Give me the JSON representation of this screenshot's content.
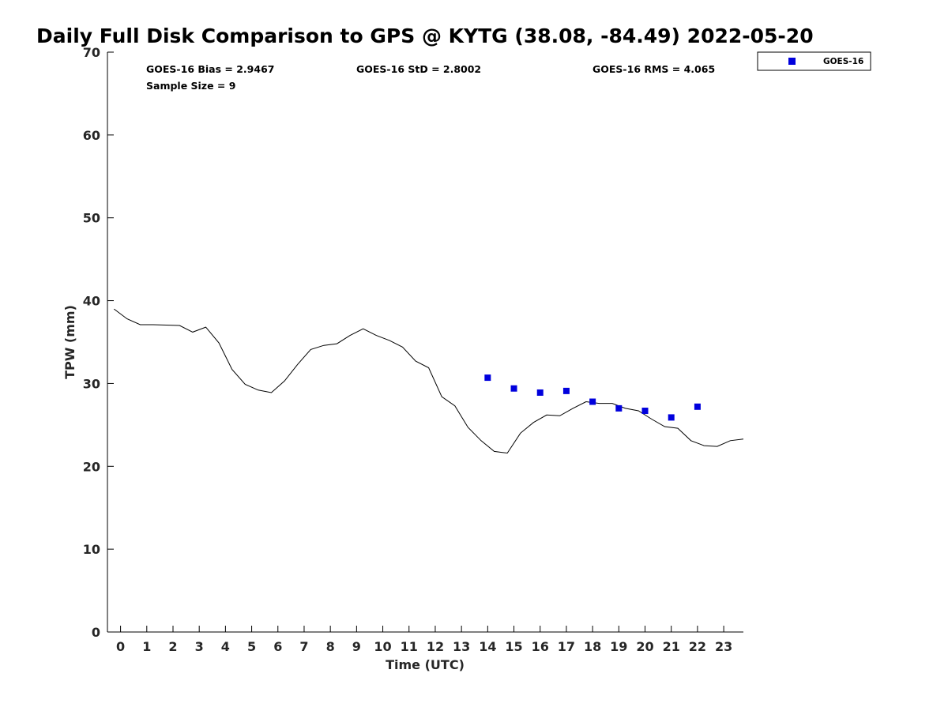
{
  "chart_data": {
    "type": "scatter",
    "title": "Daily Full Disk Comparison to GPS @ KYTG (38.08, -84.49) 2022-05-20",
    "xlabel": "Time (UTC)",
    "ylabel": "TPW (mm)",
    "xlim": [
      -0.5,
      23.75
    ],
    "ylim": [
      0,
      70
    ],
    "xticks": [
      "0",
      "1",
      "2",
      "3",
      "4",
      "5",
      "6",
      "7",
      "8",
      "9",
      "10",
      "11",
      "12",
      "13",
      "14",
      "15",
      "16",
      "17",
      "18",
      "19",
      "20",
      "21",
      "22",
      "23"
    ],
    "yticks": [
      "0",
      "10",
      "20",
      "30",
      "40",
      "50",
      "60",
      "70"
    ],
    "grid": false,
    "legend_position": "top-right, outside plot",
    "stats": {
      "bias": "GOES-16 Bias = 2.9467",
      "std": "GOES-16 StD = 2.8002",
      "rms": "GOES-16 RMS = 4.065",
      "sample": "Sample Size = 9"
    },
    "series": [
      {
        "kind": "line",
        "color": "#000000",
        "x": [
          -0.25,
          0.25,
          0.75,
          1.25,
          1.75,
          2.25,
          2.75,
          3.25,
          3.75,
          4.25,
          4.75,
          5.25,
          5.75,
          6.25,
          6.75,
          7.25,
          7.75,
          8.25,
          8.75,
          9.25,
          9.75,
          10.25,
          10.75,
          11.25,
          11.75,
          12.25,
          12.75,
          13.25,
          13.75,
          14.25,
          14.75,
          15.25,
          15.75,
          16.25,
          16.75,
          17.25,
          17.75,
          18.25,
          18.75,
          19.25,
          19.75,
          20.25,
          20.75,
          21.25,
          21.75,
          22.25,
          22.75,
          23.25,
          23.75
        ],
        "y": [
          39.0,
          37.8,
          37.1,
          37.1,
          37.05,
          37.0,
          36.2,
          36.8,
          34.9,
          31.7,
          29.9,
          29.2,
          28.9,
          30.3,
          32.3,
          34.1,
          34.6,
          34.8,
          35.8,
          36.6,
          35.8,
          35.2,
          34.4,
          32.7,
          31.9,
          28.4,
          27.3,
          24.7,
          23.1,
          21.8,
          21.6,
          24.0,
          25.3,
          26.2,
          26.1,
          27.0,
          27.8,
          27.6,
          27.6,
          27.0,
          26.7,
          25.7,
          24.8,
          24.6,
          23.1,
          22.5,
          22.4,
          23.1,
          23.3
        ]
      },
      {
        "kind": "scatter",
        "name": "GOES-16",
        "color": "#0000dd",
        "x": [
          14,
          15,
          16,
          17,
          18,
          19,
          20,
          21,
          22
        ],
        "y": [
          30.7,
          29.4,
          28.9,
          29.1,
          27.8,
          27.0,
          26.7,
          25.9,
          27.2
        ]
      }
    ]
  }
}
